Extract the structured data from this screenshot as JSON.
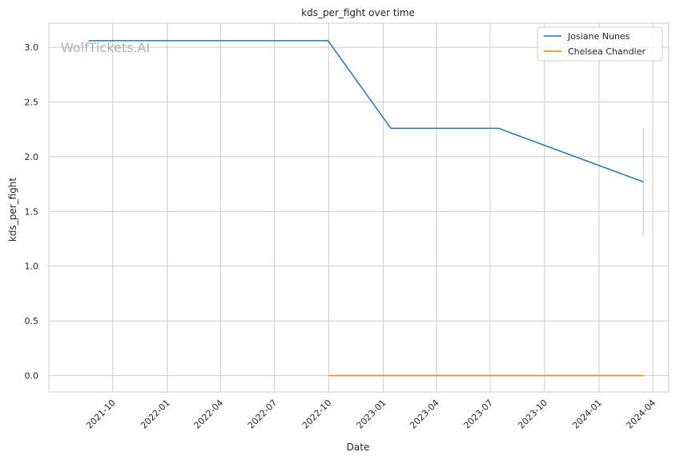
{
  "chart_data": {
    "type": "line",
    "title": "kds_per_fight over time",
    "xlabel": "Date",
    "ylabel": "kds_per_fight",
    "watermark": "WolfTickets.AI",
    "x_axis": {
      "type": "date",
      "range": [
        "2021-06-15",
        "2024-04-28"
      ],
      "ticks": [
        "2021-10-01",
        "2022-01-01",
        "2022-04-01",
        "2022-07-01",
        "2022-10-01",
        "2023-01-01",
        "2023-04-01",
        "2023-07-01",
        "2023-10-01",
        "2024-01-01",
        "2024-04-01"
      ],
      "tick_labels": [
        "2021-10",
        "2022-01",
        "2022-04",
        "2022-07",
        "2022-10",
        "2023-01",
        "2023-04",
        "2023-07",
        "2023-10",
        "2024-01",
        "2024-04"
      ]
    },
    "y_axis": {
      "range": [
        -0.15,
        3.22
      ],
      "ticks": [
        0.0,
        0.5,
        1.0,
        1.5,
        2.0,
        2.5,
        3.0
      ],
      "tick_labels": [
        "0.0",
        "0.5",
        "1.0",
        "1.5",
        "2.0",
        "2.5",
        "3.0"
      ]
    },
    "grid": true,
    "legend_position": "top-right",
    "series": [
      {
        "name": "Josiane Nunes",
        "color": "#1f77b4",
        "points": [
          {
            "x": "2021-08-21",
            "y": 3.06
          },
          {
            "x": "2022-09-30",
            "y": 3.06
          },
          {
            "x": "2023-01-14",
            "y": 2.26
          },
          {
            "x": "2023-07-15",
            "y": 2.26
          },
          {
            "x": "2024-03-16",
            "y": 1.77
          }
        ]
      },
      {
        "name": "Chelsea Chandler",
        "color": "#ff7f0e",
        "points": [
          {
            "x": "2022-10-01",
            "y": 0.0
          },
          {
            "x": "2024-03-16",
            "y": 0.0
          }
        ]
      }
    ],
    "error_band": {
      "x": "2024-03-16",
      "y_low": 1.28,
      "y_high": 2.26,
      "color": "#a9d3c3"
    }
  }
}
